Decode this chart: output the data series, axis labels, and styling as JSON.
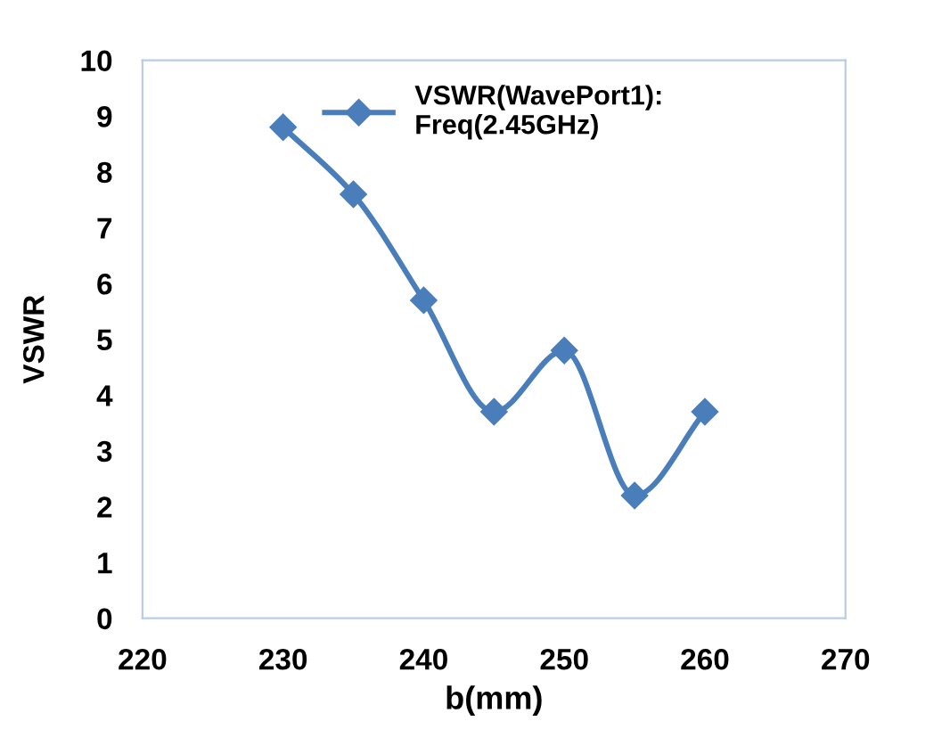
{
  "chart_data": {
    "type": "line",
    "xlabel": "b(mm)",
    "ylabel": "VSWR",
    "x": [
      230,
      235,
      240,
      245,
      250,
      255,
      260
    ],
    "series": [
      {
        "name": "VSWR(WavePort1):\nFreq(2.45GHz)",
        "color": "#4a7ebb",
        "values": [
          8.8,
          7.6,
          5.7,
          3.7,
          4.8,
          2.2,
          3.7
        ]
      }
    ],
    "xlim": [
      220,
      270
    ],
    "xticks": [
      220,
      230,
      240,
      250,
      260,
      270
    ],
    "ylim": [
      0,
      10
    ],
    "yticks": [
      0,
      1,
      2,
      3,
      4,
      5,
      6,
      7,
      8,
      9,
      10
    ],
    "grid": false,
    "legend": "top",
    "marker": "diamond",
    "line_style": "solid"
  }
}
